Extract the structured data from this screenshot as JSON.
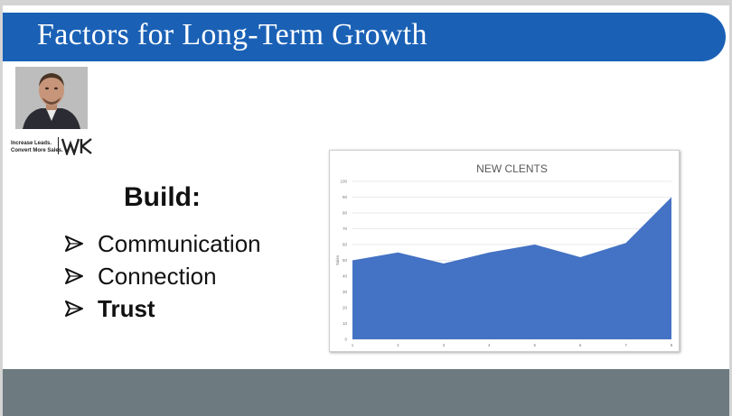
{
  "slide": {
    "title": "Factors for Long-Term Growth",
    "logo": {
      "tagline": "Increase Leads.\nConvert More Sales.",
      "mark": "WK"
    },
    "build_heading": "Build:",
    "bullets": [
      {
        "text": "Communication",
        "bold": false
      },
      {
        "text": "Connection",
        "bold": false
      },
      {
        "text": "Trust",
        "bold": true
      }
    ]
  },
  "colors": {
    "title_bar": "#1a61b6",
    "chart_fill": "#4472c4",
    "footer": "#6d7b80"
  },
  "chart_data": {
    "type": "area",
    "title": "NEW CLENTS",
    "ylabel": "Sales",
    "x": [
      1,
      2,
      3,
      4,
      5,
      6,
      7,
      8
    ],
    "values": [
      50,
      55,
      48,
      55,
      60,
      52,
      61,
      90
    ],
    "ylim": [
      0,
      100
    ],
    "yticks": [
      0,
      10,
      20,
      30,
      40,
      50,
      60,
      70,
      80,
      90,
      100
    ],
    "grid": true,
    "legend": "none"
  }
}
